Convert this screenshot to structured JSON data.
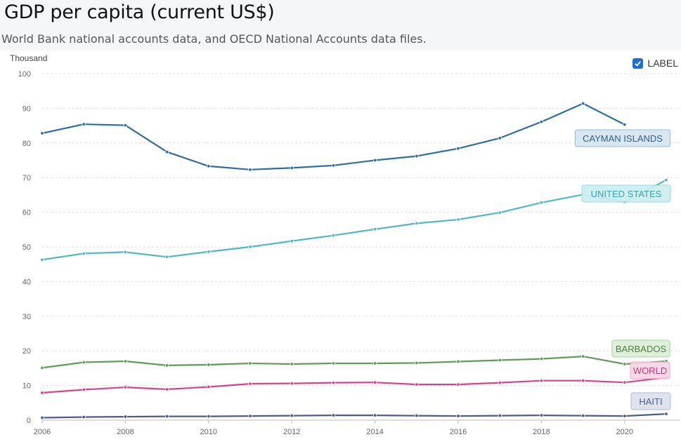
{
  "header": {
    "title": "GDP per capita (current US$)",
    "subtitle": "World Bank national accounts data, and OECD National Accounts data files."
  },
  "controls": {
    "label_toggle": "LABEL",
    "label_checked": true
  },
  "chart_data": {
    "type": "line",
    "title": "GDP per capita (current US$)",
    "subtitle": "World Bank national accounts data, and OECD National Accounts data files.",
    "ylabel": "Thousand",
    "xlabel": "",
    "ylim": [
      0,
      100
    ],
    "xlim": [
      2006,
      2021
    ],
    "yticks": [
      0,
      10,
      20,
      30,
      40,
      50,
      60,
      70,
      80,
      90,
      100
    ],
    "xticks": [
      2006,
      2008,
      2010,
      2012,
      2014,
      2016,
      2018,
      2020
    ],
    "grid": "horizontal dashed",
    "x": [
      2006,
      2007,
      2008,
      2009,
      2010,
      2011,
      2012,
      2013,
      2014,
      2015,
      2016,
      2017,
      2018,
      2019,
      2020,
      2021
    ],
    "series": [
      {
        "name": "CAYMAN ISLANDS",
        "color": "#2f6f9f",
        "label_bg": "#d6e6f3",
        "label_border": "#8fb5d6",
        "label_color": "#2f5f85",
        "values": [
          82.8,
          85.4,
          85.1,
          77.4,
          73.3,
          72.3,
          72.8,
          73.5,
          75.0,
          76.2,
          78.4,
          81.4,
          86.1,
          91.4,
          85.3,
          null
        ]
      },
      {
        "name": "UNITED STATES",
        "color": "#4fb8c4",
        "label_bg": "#cdeef0",
        "label_border": "#92d4da",
        "label_color": "#3aa1ad",
        "values": [
          46.3,
          48.1,
          48.5,
          47.1,
          48.6,
          50.0,
          51.7,
          53.3,
          55.1,
          56.8,
          57.9,
          59.9,
          62.8,
          65.1,
          63.0,
          69.3
        ]
      },
      {
        "name": "BARBADOS",
        "color": "#5e9c58",
        "label_bg": "#dcefd6",
        "label_border": "#a4cf9b",
        "label_color": "#4d7f48",
        "values": [
          15.1,
          16.7,
          17.0,
          15.8,
          16.0,
          16.4,
          16.2,
          16.4,
          16.4,
          16.5,
          16.9,
          17.3,
          17.7,
          18.4,
          16.2,
          17.0
        ]
      },
      {
        "name": "WORLD",
        "color": "#d9428a",
        "label_bg": "#f8d7e6",
        "label_border": "#eba3c4",
        "label_color": "#c6377a",
        "values": [
          7.9,
          8.8,
          9.5,
          8.9,
          9.6,
          10.5,
          10.6,
          10.8,
          10.9,
          10.3,
          10.3,
          10.8,
          11.4,
          11.4,
          10.9,
          12.3
        ]
      },
      {
        "name": "HAITI",
        "color": "#4a5f86",
        "label_bg": "#dde1ee",
        "label_border": "#aab3cf",
        "label_color": "#4a5f86",
        "values": [
          0.7,
          0.9,
          1.0,
          1.1,
          1.1,
          1.2,
          1.3,
          1.4,
          1.4,
          1.3,
          1.2,
          1.3,
          1.4,
          1.3,
          1.2,
          1.8
        ]
      }
    ]
  }
}
